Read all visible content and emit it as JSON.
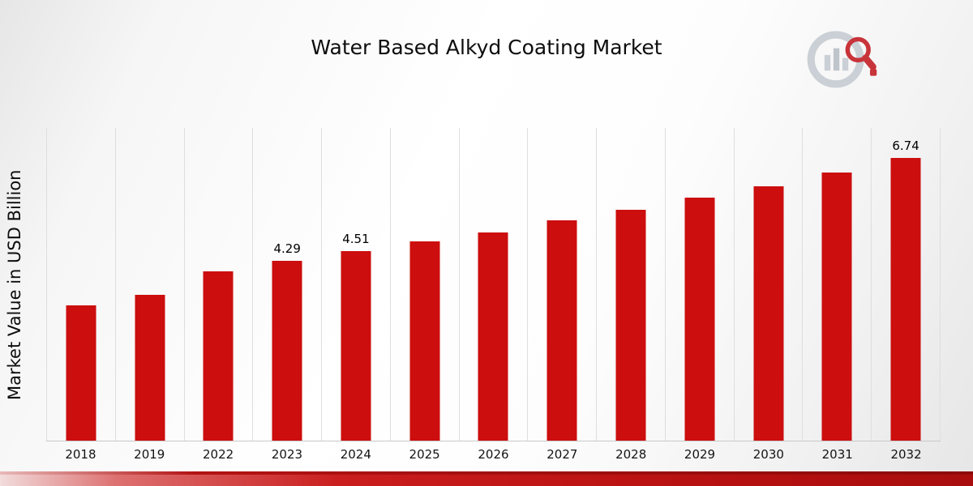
{
  "chart_data": {
    "type": "bar",
    "title": "Water Based Alkyd Coating Market",
    "xlabel": "",
    "ylabel": "Market Value in USD Billion",
    "ylim": [
      0,
      7.45
    ],
    "grid": "vertical-only",
    "legend": "none",
    "bar_color": "#cc0e0e",
    "categories": [
      "2018",
      "2019",
      "2022",
      "2023",
      "2024",
      "2025",
      "2026",
      "2027",
      "2028",
      "2029",
      "2030",
      "2031",
      "2032"
    ],
    "points": [
      {
        "year": "2018",
        "value": 3.22,
        "label": ""
      },
      {
        "year": "2019",
        "value": 3.47,
        "label": ""
      },
      {
        "year": "2022",
        "value": 4.03,
        "label": ""
      },
      {
        "year": "2023",
        "value": 4.29,
        "label": "4.29"
      },
      {
        "year": "2024",
        "value": 4.51,
        "label": "4.51"
      },
      {
        "year": "2025",
        "value": 4.75,
        "label": ""
      },
      {
        "year": "2026",
        "value": 4.96,
        "label": ""
      },
      {
        "year": "2027",
        "value": 5.25,
        "label": ""
      },
      {
        "year": "2028",
        "value": 5.5,
        "label": ""
      },
      {
        "year": "2029",
        "value": 5.79,
        "label": ""
      },
      {
        "year": "2030",
        "value": 6.06,
        "label": ""
      },
      {
        "year": "2031",
        "value": 6.38,
        "label": ""
      },
      {
        "year": "2032",
        "value": 6.74,
        "label": "6.74"
      }
    ]
  },
  "icons": {
    "logo": "market-research-chart-logo-with-red-magnifier"
  },
  "colors": {
    "bar": "#cc0e0e",
    "ribbon": "#b31313",
    "gridline": "#dedede",
    "logo_gray": "#c6ccd2",
    "logo_red": "#c32026"
  }
}
